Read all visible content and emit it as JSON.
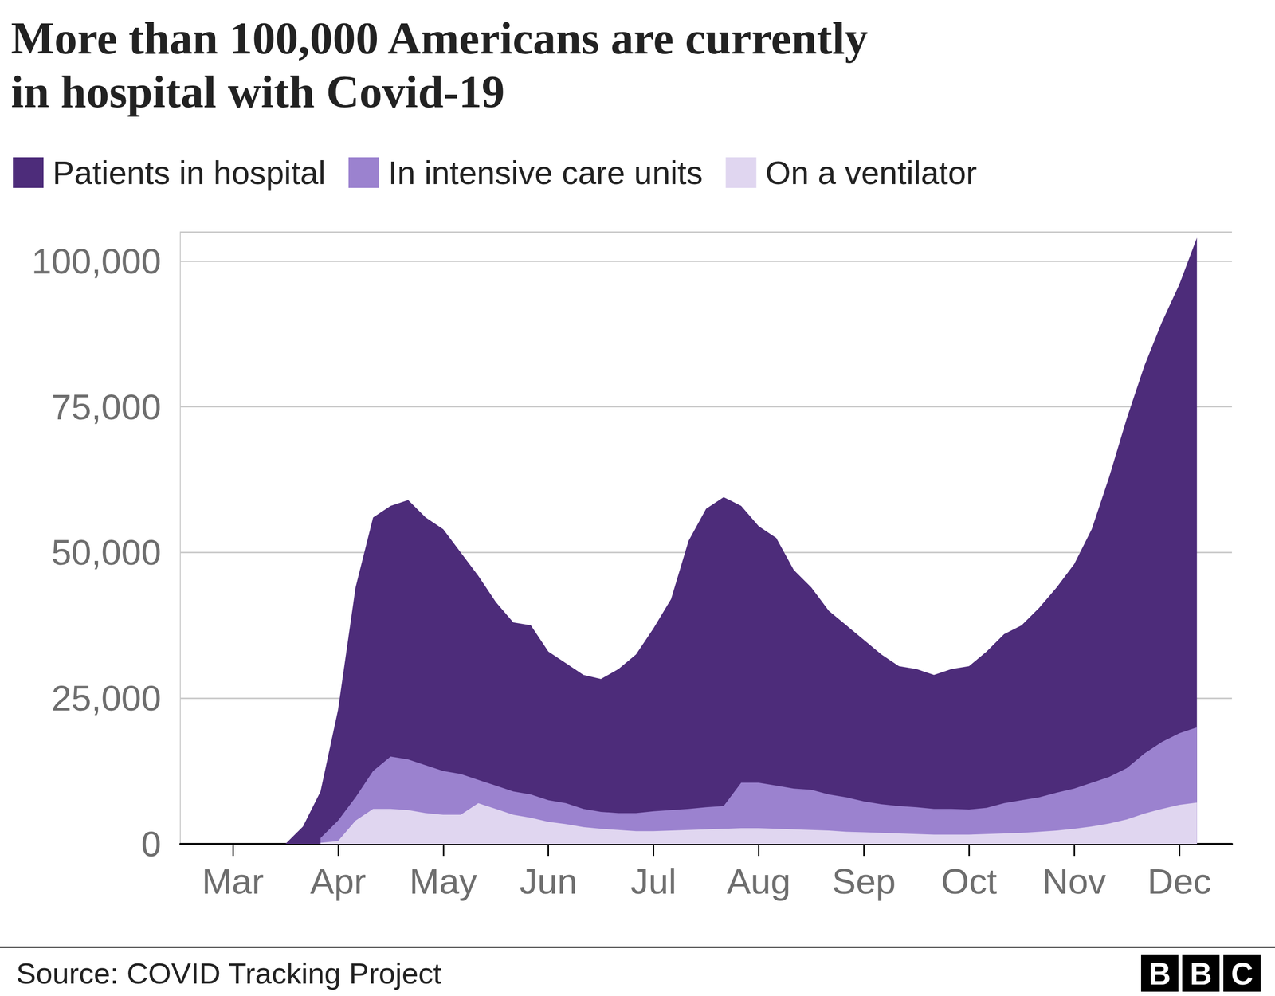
{
  "chart_data": {
    "type": "area",
    "title": "More than 100,000 Americans are currently\nin hospital with Covid-19",
    "source": "Source: COVID Tracking Project",
    "logo": "BBC",
    "categories": [
      null,
      null,
      null,
      "Mar",
      null,
      null,
      null,
      null,
      null,
      "Apr",
      null,
      null,
      null,
      null,
      null,
      "May",
      null,
      null,
      null,
      null,
      null,
      "Jun",
      null,
      null,
      null,
      null,
      null,
      "Jul",
      null,
      null,
      null,
      null,
      null,
      "Aug",
      null,
      null,
      null,
      null,
      null,
      "Sep",
      null,
      null,
      null,
      null,
      null,
      "Oct",
      null,
      null,
      null,
      null,
      null,
      "Nov",
      null,
      null,
      null,
      null,
      null,
      "Dec",
      null,
      null,
      null
    ],
    "series": [
      {
        "name": "Patients in hospital",
        "color": "#4d2c7a",
        "values": [
          null,
          null,
          null,
          null,
          null,
          null,
          0,
          3000,
          9000,
          23000,
          44000,
          56000,
          58000,
          59000,
          56000,
          54000,
          50000,
          46000,
          41500,
          38000,
          37500,
          33000,
          31000,
          29000,
          28300,
          30000,
          32500,
          37000,
          42000,
          52000,
          57500,
          59500,
          58000,
          54500,
          52500,
          47000,
          44000,
          40000,
          37500,
          35000,
          32500,
          30500,
          30000,
          29000,
          30000,
          30500,
          33000,
          36000,
          37500,
          40500,
          44000,
          48000,
          54000,
          63000,
          73000,
          82000,
          89500,
          96000,
          104000,
          null,
          null
        ]
      },
      {
        "name": "In intensive care units",
        "color": "#9b82cf",
        "values": [
          null,
          null,
          null,
          null,
          null,
          null,
          null,
          null,
          1000,
          4000,
          8000,
          12500,
          15000,
          14500,
          13500,
          12500,
          12000,
          11000,
          10000,
          9000,
          8500,
          7500,
          7000,
          6000,
          5500,
          5300,
          5300,
          5600,
          5800,
          6000,
          6300,
          6500,
          10500,
          10500,
          10000,
          9500,
          9300,
          8500,
          8000,
          7300,
          6800,
          6500,
          6300,
          6000,
          6000,
          5900,
          6200,
          7000,
          7500,
          8000,
          8800,
          9500,
          10500,
          11500,
          13000,
          15500,
          17500,
          19000,
          20000,
          null,
          null
        ]
      },
      {
        "name": "On a ventilator",
        "color": "#e0d6f0",
        "values": [
          null,
          null,
          null,
          null,
          null,
          null,
          null,
          null,
          200,
          500,
          4000,
          6000,
          6000,
          5800,
          5300,
          5000,
          5000,
          7000,
          6000,
          5000,
          4500,
          3800,
          3400,
          2900,
          2600,
          2400,
          2200,
          2200,
          2300,
          2400,
          2500,
          2600,
          2700,
          2700,
          2600,
          2500,
          2400,
          2300,
          2100,
          2000,
          1900,
          1800,
          1700,
          1600,
          1600,
          1600,
          1700,
          1800,
          1900,
          2100,
          2300,
          2600,
          3000,
          3500,
          4200,
          5200,
          6000,
          6700,
          7100,
          null,
          null
        ]
      }
    ],
    "ylim": [
      0,
      105000
    ],
    "yticks": [
      0,
      {
        "value": 25000,
        "label": "25,000"
      },
      {
        "value": 50000,
        "label": "50,000"
      },
      {
        "value": 75000,
        "label": "75,000"
      },
      {
        "value": 100000,
        "label": "100,000"
      }
    ],
    "grid": true,
    "stacked": false,
    "legend": "top-left"
  }
}
